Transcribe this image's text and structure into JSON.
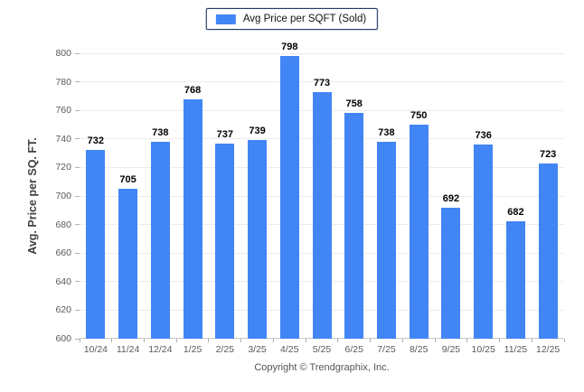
{
  "legend": {
    "label": "Avg Price per SQFT (Sold)"
  },
  "y_axis": {
    "title": "Avg. Price per SQ. FT."
  },
  "footer": {
    "text": "Copyright © Trendgraphix, Inc."
  },
  "colors": {
    "bar": "#4285f4",
    "legend_border": "#1f3864",
    "gridline": "#ececec",
    "axis_line": "#c9c9c9",
    "tick_mark": "#b0b0b0",
    "tick_text": "#595959",
    "value_text": "#000000",
    "footer_text": "#555555",
    "y_title_text": "#404040"
  },
  "chart_data": {
    "type": "bar",
    "title": "Avg Price per SQFT (Sold)",
    "categories": [
      "10/24",
      "11/24",
      "12/24",
      "1/25",
      "2/25",
      "3/25",
      "4/25",
      "5/25",
      "6/25",
      "7/25",
      "8/25",
      "9/25",
      "10/25",
      "11/25",
      "12/25"
    ],
    "values": [
      732,
      705,
      738,
      768,
      737,
      739,
      798,
      773,
      758,
      738,
      750,
      692,
      736,
      682,
      723
    ],
    "xlabel": "",
    "ylabel": "Avg. Price per SQ. FT.",
    "ylim": [
      600,
      800
    ],
    "ytick_step": 20,
    "grid": true,
    "data_labels": true,
    "legend_position": "top-center"
  }
}
